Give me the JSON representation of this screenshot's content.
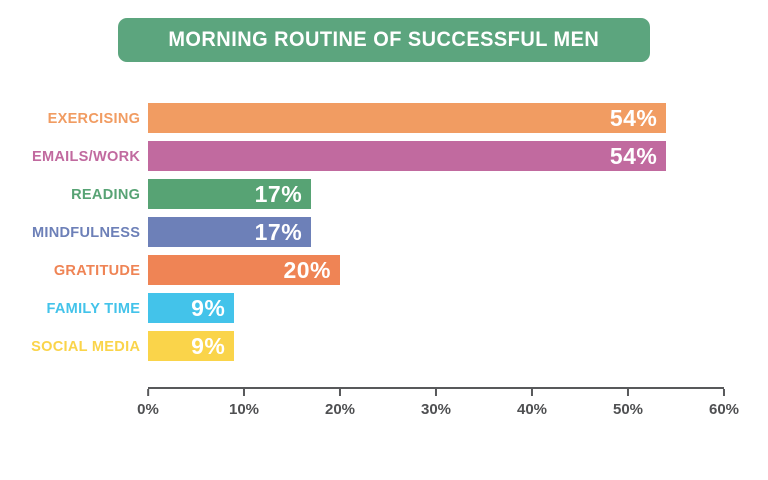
{
  "header": {
    "banner_color": "#5ca57e"
  },
  "axis_color": "#58595b",
  "chart_data": {
    "type": "bar",
    "orientation": "horizontal",
    "title": "MORNING ROUTINE OF SUCCESSFUL MEN",
    "categories": [
      "EXERCISING",
      "EMAILS/WORK",
      "READING",
      "MINDFULNESS",
      "GRATITUDE",
      "FAMILY TIME",
      "SOCIAL MEDIA"
    ],
    "values": [
      54,
      54,
      17,
      17,
      20,
      9,
      9
    ],
    "value_labels": [
      "54%",
      "54%",
      "17%",
      "17%",
      "20%",
      "9%",
      "9%"
    ],
    "bar_colors": [
      "#f19c62",
      "#c16a9f",
      "#57a374",
      "#6d80b8",
      "#ef8455",
      "#43c3ea",
      "#fad44a"
    ],
    "xlim": [
      0,
      60
    ],
    "x_ticks": [
      0,
      10,
      20,
      30,
      40,
      50,
      60
    ],
    "x_tick_labels": [
      "0%",
      "10%",
      "20%",
      "30%",
      "40%",
      "50%",
      "60%"
    ],
    "xlabel": "",
    "ylabel": "",
    "grid": false,
    "legend": false
  }
}
